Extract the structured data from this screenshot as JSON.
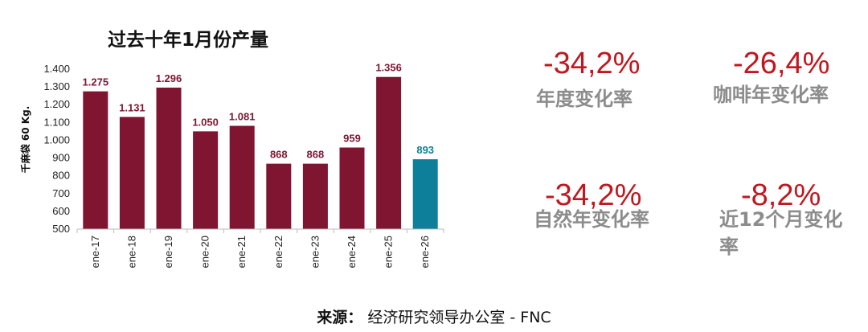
{
  "chart_data": {
    "type": "bar",
    "title": "过去十年1月份产量",
    "ylabel": "千麻袋 60 Kg.",
    "xlabel": "",
    "categories": [
      "ene-17",
      "ene-18",
      "ene-19",
      "ene-20",
      "ene-21",
      "ene-22",
      "ene-23",
      "ene-24",
      "ene-25",
      "ene-26"
    ],
    "values": [
      1275,
      1131,
      1296,
      1050,
      1081,
      868,
      868,
      959,
      1356,
      893
    ],
    "value_labels": [
      "1.275",
      "1.131",
      "1.296",
      "1.050",
      "1.081",
      "868",
      "868",
      "959",
      "1.356",
      "893"
    ],
    "ylim": [
      500,
      1400
    ],
    "yticks": [
      500,
      600,
      700,
      800,
      900,
      1000,
      1100,
      1200,
      1300,
      1400
    ],
    "ytick_labels": [
      "500",
      "600",
      "700",
      "800",
      "900",
      "1.000",
      "1.100",
      "1.200",
      "1.300",
      "1.400"
    ],
    "grid": false,
    "colors": {
      "bar": "#7f1530",
      "highlight_bar": "#0e7f9a",
      "label": "#7f1530",
      "highlight_label": "#0e7f9a"
    },
    "highlight_index": 9
  },
  "kpis": [
    {
      "value": "-34,2%",
      "label": "年度变化率"
    },
    {
      "value": "-26,4%",
      "label": "咖啡年变化率"
    },
    {
      "value": "-34,2%",
      "label": "自然年变化率"
    },
    {
      "value": "-8,2%",
      "label": "近12个月变化率"
    }
  ],
  "source": {
    "label": "来源：",
    "text": " 经济研究领导办公室 - FNC"
  }
}
